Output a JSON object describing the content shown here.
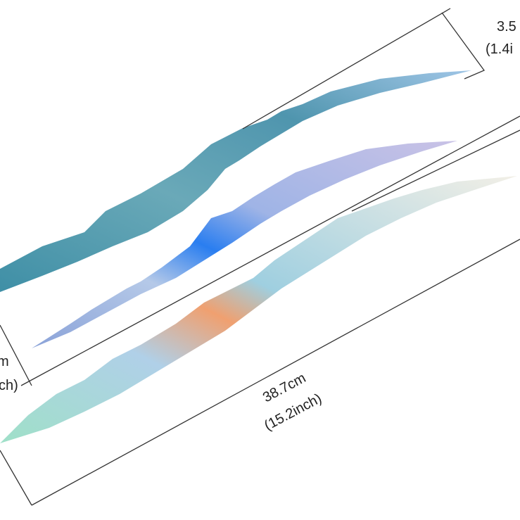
{
  "dimensions": [
    {
      "lines": [
        "3.5",
        "(1.4i"
      ]
    },
    {
      "lines": [
        "m",
        "ch)"
      ]
    },
    {
      "lines": [
        "38.7cm",
        "(15.2inch)"
      ]
    }
  ]
}
